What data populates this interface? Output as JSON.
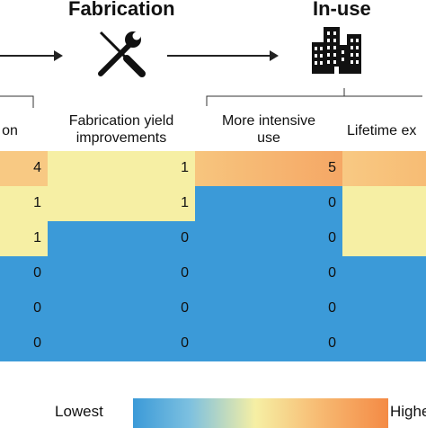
{
  "stages": {
    "fabrication": "Fabrication",
    "in_use": "In-use"
  },
  "icons": [
    "tools-icon",
    "buildings-icon"
  ],
  "colors": {
    "lowest": "#3b9ad8",
    "low": "#f6efa4",
    "high": "#f8c983",
    "highest": "#f48a45",
    "arrow": "#222222"
  },
  "chart_data": {
    "type": "heatmap",
    "columns": [
      "on",
      "Fabrication yield improvements",
      "More intensive use",
      "Lifetime ex"
    ],
    "column_lines": [
      [
        "on"
      ],
      [
        "Fabrication yield",
        "improvements"
      ],
      [
        "More intensive",
        "use"
      ],
      [
        "Lifetime ex"
      ]
    ],
    "rows": [
      [
        4,
        1,
        5,
        null
      ],
      [
        1,
        1,
        0,
        null
      ],
      [
        1,
        0,
        0,
        null
      ],
      [
        0,
        0,
        0,
        null
      ],
      [
        0,
        0,
        0,
        null
      ],
      [
        0,
        0,
        0,
        null
      ]
    ],
    "color_levels": [
      [
        "high",
        "low",
        "high",
        "high"
      ],
      [
        "low",
        "low",
        "lowest",
        "low"
      ],
      [
        "low",
        "lowest",
        "lowest",
        "low"
      ],
      [
        "lowest",
        "lowest",
        "lowest",
        "lowest"
      ],
      [
        "lowest",
        "lowest",
        "lowest",
        "lowest"
      ],
      [
        "lowest",
        "lowest",
        "lowest",
        "lowest"
      ]
    ]
  },
  "legend": {
    "low_label": "Lowest",
    "high_label": "Highest"
  }
}
